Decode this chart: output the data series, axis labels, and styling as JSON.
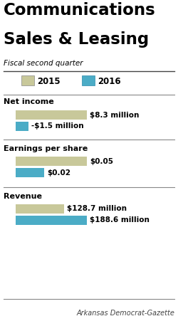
{
  "title_line1": "Communications",
  "title_line2": "Sales & Leasing",
  "subtitle": "Fiscal second quarter",
  "legend_2015": "2015",
  "legend_2016": "2016",
  "color_2015": "#c8c89a",
  "color_2016": "#4bacc6",
  "color_2015_edge": "#a0a070",
  "color_2016_edge": "#2a8aaa",
  "bg_color": "#ffffff",
  "sections": [
    {
      "label": "Net income",
      "values": [
        8.3,
        -1.5
      ],
      "labels": [
        "$8.3 million",
        "-$1.5 million"
      ],
      "max_scale": 8.3
    },
    {
      "label": "Earnings per share",
      "values": [
        0.05,
        0.02
      ],
      "labels": [
        "$0.05",
        "$0.02"
      ],
      "max_scale": 0.05
    },
    {
      "label": "Revenue",
      "values": [
        128.7,
        188.6
      ],
      "labels": [
        "$128.7 million",
        "$188.6 million"
      ],
      "max_scale": 188.6
    }
  ],
  "footer": "Arkansas Democrat-Gazette",
  "title_fontsize": 16.5,
  "subtitle_fontsize": 7.5,
  "legend_fontsize": 8.5,
  "section_label_fontsize": 8,
  "bar_label_fontsize": 7.5
}
